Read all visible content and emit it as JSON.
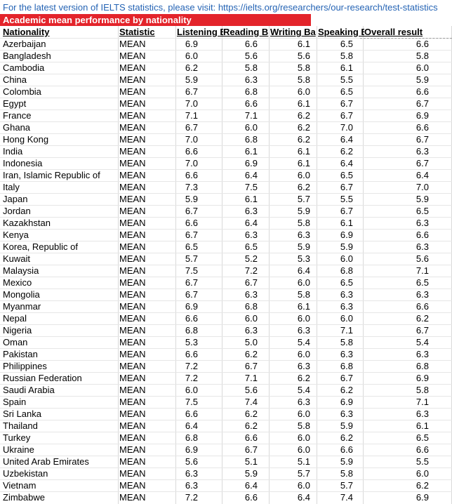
{
  "link_text": "For the latest version of IELTS statistics, please visit: https://ielts.org/researchers/our-research/test-statistics",
  "title": "Academic mean performance by nationality",
  "accent_color": "#e3242b",
  "headers": [
    "Nationality",
    "Statistic",
    "Listening B",
    "Reading B",
    "Writing Ba",
    "Speaking B",
    "Overall result"
  ],
  "rows": [
    [
      "Azerbaijan",
      "MEAN",
      "6.9",
      "6.6",
      "6.1",
      "6.5",
      "6.6"
    ],
    [
      "Bangladesh",
      "MEAN",
      "6.0",
      "5.6",
      "5.6",
      "5.8",
      "5.8"
    ],
    [
      "Cambodia",
      "MEAN",
      "6.2",
      "5.8",
      "5.8",
      "6.1",
      "6.0"
    ],
    [
      "China",
      "MEAN",
      "5.9",
      "6.3",
      "5.8",
      "5.5",
      "5.9"
    ],
    [
      "Colombia",
      "MEAN",
      "6.7",
      "6.8",
      "6.0",
      "6.5",
      "6.6"
    ],
    [
      "Egypt",
      "MEAN",
      "7.0",
      "6.6",
      "6.1",
      "6.7",
      "6.7"
    ],
    [
      "France",
      "MEAN",
      "7.1",
      "7.1",
      "6.2",
      "6.7",
      "6.9"
    ],
    [
      "Ghana",
      "MEAN",
      "6.7",
      "6.0",
      "6.2",
      "7.0",
      "6.6"
    ],
    [
      "Hong Kong",
      "MEAN",
      "7.0",
      "6.8",
      "6.2",
      "6.4",
      "6.7"
    ],
    [
      "India",
      "MEAN",
      "6.6",
      "6.1",
      "6.1",
      "6.2",
      "6.3"
    ],
    [
      "Indonesia",
      "MEAN",
      "7.0",
      "6.9",
      "6.1",
      "6.4",
      "6.7"
    ],
    [
      "Iran, Islamic Republic of",
      "MEAN",
      "6.6",
      "6.4",
      "6.0",
      "6.5",
      "6.4"
    ],
    [
      "Italy",
      "MEAN",
      "7.3",
      "7.5",
      "6.2",
      "6.7",
      "7.0"
    ],
    [
      "Japan",
      "MEAN",
      "5.9",
      "6.1",
      "5.7",
      "5.5",
      "5.9"
    ],
    [
      "Jordan",
      "MEAN",
      "6.7",
      "6.3",
      "5.9",
      "6.7",
      "6.5"
    ],
    [
      "Kazakhstan",
      "MEAN",
      "6.6",
      "6.4",
      "5.8",
      "6.1",
      "6.3"
    ],
    [
      "Kenya",
      "MEAN",
      "6.7",
      "6.3",
      "6.3",
      "6.9",
      "6.6"
    ],
    [
      "Korea, Republic of",
      "MEAN",
      "6.5",
      "6.5",
      "5.9",
      "5.9",
      "6.3"
    ],
    [
      "Kuwait",
      "MEAN",
      "5.7",
      "5.2",
      "5.3",
      "6.0",
      "5.6"
    ],
    [
      "Malaysia",
      "MEAN",
      "7.5",
      "7.2",
      "6.4",
      "6.8",
      "7.1"
    ],
    [
      "Mexico",
      "MEAN",
      "6.7",
      "6.7",
      "6.0",
      "6.5",
      "6.5"
    ],
    [
      "Mongolia",
      "MEAN",
      "6.7",
      "6.3",
      "5.8",
      "6.3",
      "6.3"
    ],
    [
      "Myanmar",
      "MEAN",
      "6.9",
      "6.8",
      "6.1",
      "6.3",
      "6.6"
    ],
    [
      "Nepal",
      "MEAN",
      "6.6",
      "6.0",
      "6.0",
      "6.0",
      "6.2"
    ],
    [
      "Nigeria",
      "MEAN",
      "6.8",
      "6.3",
      "6.3",
      "7.1",
      "6.7"
    ],
    [
      "Oman",
      "MEAN",
      "5.3",
      "5.0",
      "5.4",
      "5.8",
      "5.4"
    ],
    [
      "Pakistan",
      "MEAN",
      "6.6",
      "6.2",
      "6.0",
      "6.3",
      "6.3"
    ],
    [
      "Philippines",
      "MEAN",
      "7.2",
      "6.7",
      "6.3",
      "6.8",
      "6.8"
    ],
    [
      "Russian Federation",
      "MEAN",
      "7.2",
      "7.1",
      "6.2",
      "6.7",
      "6.9"
    ],
    [
      "Saudi Arabia",
      "MEAN",
      "6.0",
      "5.6",
      "5.4",
      "6.2",
      "5.8"
    ],
    [
      "Spain",
      "MEAN",
      "7.5",
      "7.4",
      "6.3",
      "6.9",
      "7.1"
    ],
    [
      "Sri Lanka",
      "MEAN",
      "6.6",
      "6.2",
      "6.0",
      "6.3",
      "6.3"
    ],
    [
      "Thailand",
      "MEAN",
      "6.4",
      "6.2",
      "5.8",
      "5.9",
      "6.1"
    ],
    [
      "Turkey",
      "MEAN",
      "6.8",
      "6.6",
      "6.0",
      "6.2",
      "6.5"
    ],
    [
      "Ukraine",
      "MEAN",
      "6.9",
      "6.7",
      "6.0",
      "6.6",
      "6.6"
    ],
    [
      "United Arab Emirates",
      "MEAN",
      "5.6",
      "5.1",
      "5.1",
      "5.9",
      "5.5"
    ],
    [
      "Uzbekistan",
      "MEAN",
      "6.3",
      "5.9",
      "5.7",
      "5.8",
      "6.0"
    ],
    [
      "Vietnam",
      "MEAN",
      "6.3",
      "6.4",
      "6.0",
      "5.7",
      "6.2"
    ],
    [
      "Zimbabwe",
      "MEAN",
      "7.2",
      "6.6",
      "6.4",
      "7.4",
      "6.9"
    ]
  ]
}
